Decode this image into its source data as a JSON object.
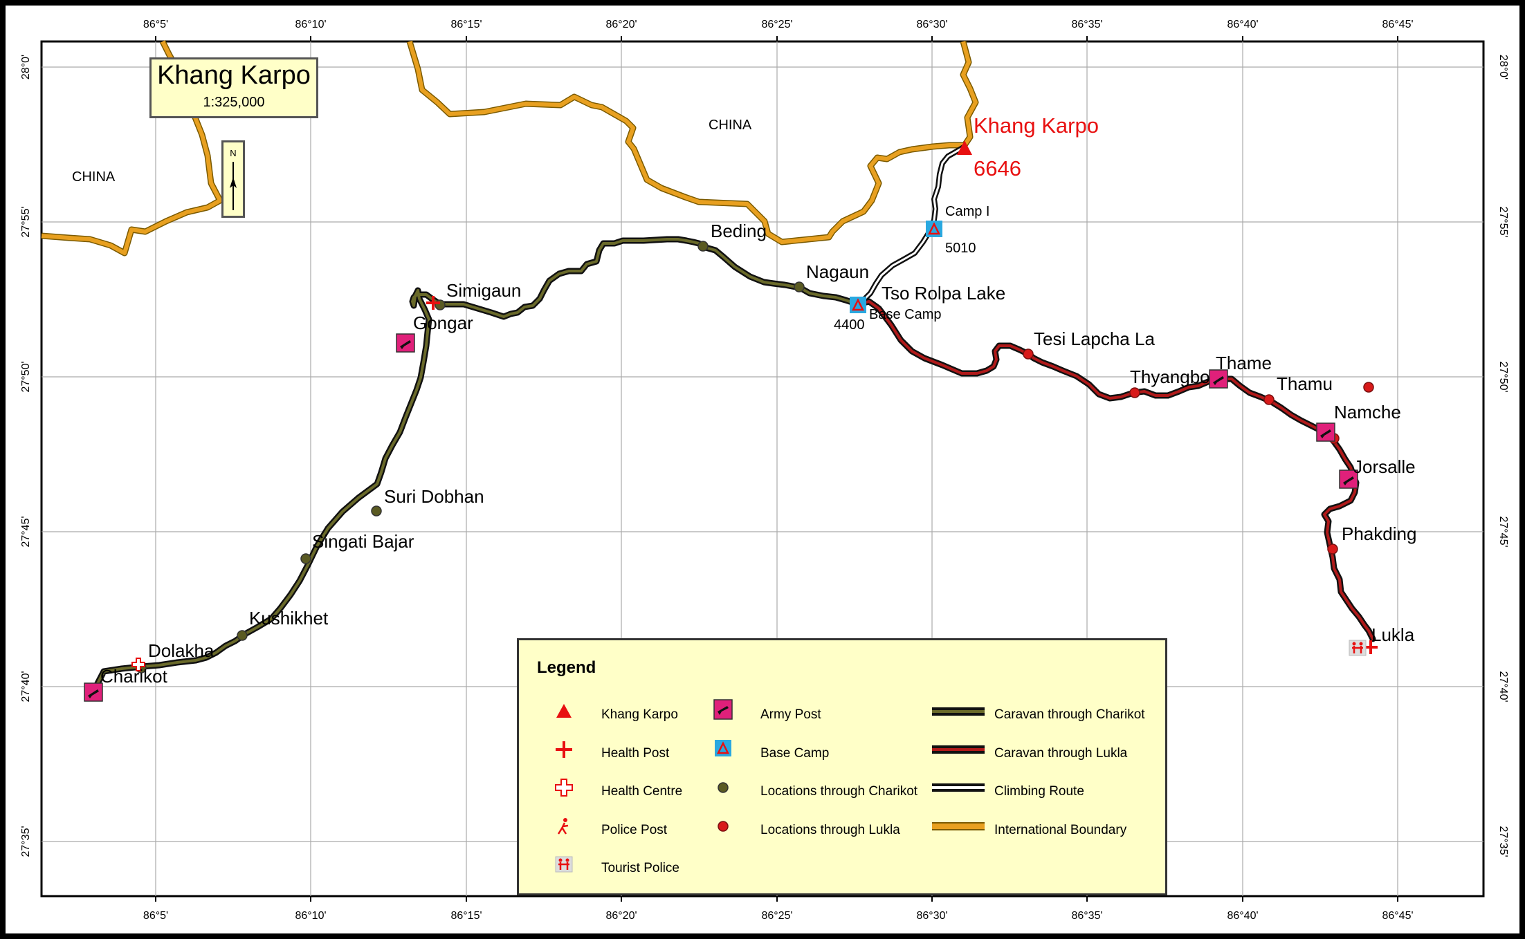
{
  "title": "Khang Karpo",
  "scale": "1:325,000",
  "north_arrow": "N",
  "lon_ticks": [
    "86°5'",
    "86°10'",
    "86°15'",
    "86°20'",
    "86°25'",
    "86°30'",
    "86°35'",
    "86°40'",
    "86°45'"
  ],
  "lat_ticks": [
    "28°0'",
    "27°55'",
    "27°50'",
    "27°45'",
    "27°40'",
    "27°35'"
  ],
  "region_labels": [
    "CHINA",
    "CHINA"
  ],
  "peak": {
    "name": "Khang Karpo",
    "elevation": "6646"
  },
  "charikot_places": [
    "Charikot",
    "Dolakha",
    "Kushikhet",
    "Singati Bajar",
    "Suri Dobhan",
    "Gongar",
    "Simigaun",
    "Beding",
    "Nagaun"
  ],
  "lukla_places": [
    "Lukla",
    "Phakding",
    "Jorsalle",
    "Namche",
    "Thamu",
    "Thame",
    "Thyangbo",
    "Tesi Lapcha La"
  ],
  "camps": {
    "lake": "Tso Rolpa Lake",
    "base_camp": "Base Camp",
    "base_elev": "4400",
    "camp1": "Camp I",
    "camp1_elev": "5010"
  },
  "legend": {
    "title": "Legend",
    "items": [
      "Khang Karpo",
      "Health Post",
      "Health Centre",
      "Police Post",
      "Tourist Police",
      "Army Post",
      "Base Camp",
      "Locations through Charikot",
      "Locations through Lukla",
      "Caravan through Charikot",
      "Caravan through Lukla",
      "Climbing Route",
      "International Boundary"
    ]
  },
  "colors": {
    "boundary": "#e8a020",
    "charikot_route": "#4a4a22",
    "lukla_route": "#8b1a1a",
    "army_post": "#e0207a",
    "base_camp": "#29a8e0",
    "peak": "#e81010",
    "legend_bg": "#ffffc8"
  }
}
